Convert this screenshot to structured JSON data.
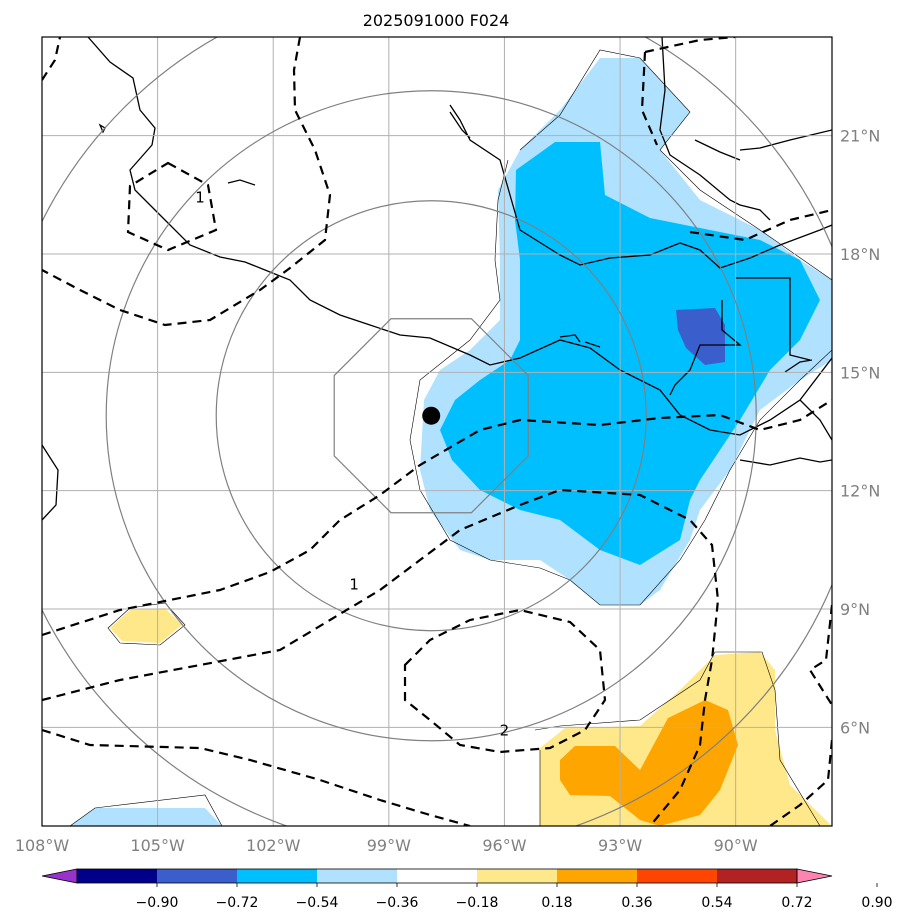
{
  "title": "2025091000 F024",
  "map": {
    "lon_range": [
      -108,
      -87.5
    ],
    "lat_range": [
      3.5,
      23.5
    ],
    "lon_ticks": [
      {
        "value": -108,
        "label": "108°W"
      },
      {
        "value": -105,
        "label": "105°W"
      },
      {
        "value": -102,
        "label": "102°W"
      },
      {
        "value": -99,
        "label": "99°W"
      },
      {
        "value": -96,
        "label": "96°W"
      },
      {
        "value": -93,
        "label": "93°W"
      },
      {
        "value": -90,
        "label": "90°W"
      }
    ],
    "lat_ticks": [
      {
        "value": 6,
        "label": "6°N"
      },
      {
        "value": 9,
        "label": "9°N"
      },
      {
        "value": 12,
        "label": "12°N"
      },
      {
        "value": 15,
        "label": "15°N"
      },
      {
        "value": 18,
        "label": "18°N"
      },
      {
        "value": 21,
        "label": "21°N"
      }
    ],
    "gridlines": true,
    "storm_center": {
      "lon": -97.9,
      "lat": 13.9
    },
    "contour_labels": [
      {
        "text": "1",
        "lon": -103.9,
        "lat": 19.3
      },
      {
        "text": "1",
        "lon": -99.9,
        "lat": 9.5
      },
      {
        "text": "2",
        "lon": -96.0,
        "lat": 5.8
      }
    ]
  },
  "colorbar": {
    "ticks": [
      "−0.90",
      "−0.72",
      "−0.54",
      "−0.36",
      "−0.18",
      "0.18",
      "0.36",
      "0.54",
      "0.72",
      "0.90"
    ],
    "colors": [
      "#9932cc",
      "#00008b",
      "#3a5fcd",
      "#00bfff",
      "#b0e2ff",
      "#ffffff",
      "#ffe88a",
      "#ffa500",
      "#ff4500",
      "#b22222",
      "#ff83b0"
    ],
    "extend": "both"
  },
  "colors": {
    "grid": "#b0b0b0",
    "range_rings": "#808080",
    "coast": "#000000"
  }
}
